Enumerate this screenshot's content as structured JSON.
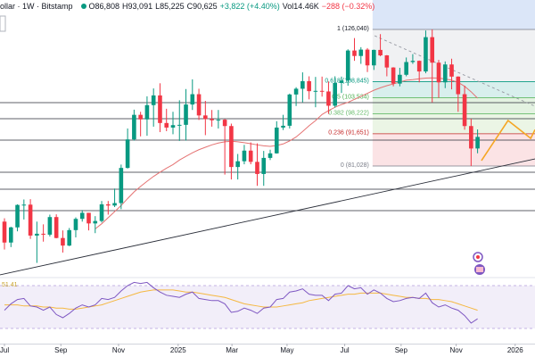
{
  "chart_data": {
    "type": "candlestick",
    "header": {
      "symbol": "ollar · 1W · Bitstamp",
      "open": "O86,808",
      "high": "H93,091",
      "low": "L85,225",
      "close": "C90,625",
      "change": "+3,822 (+4.40%)",
      "volume": "Vol14.46K",
      "volume_change": "−288 (−0.32%)"
    },
    "x": [
      0,
      1,
      2,
      3,
      4,
      5,
      6,
      7,
      8,
      9,
      10,
      11,
      12,
      13,
      14,
      15,
      16,
      17,
      18,
      19,
      20,
      21,
      22,
      23,
      24,
      25,
      26,
      27,
      28,
      29,
      30,
      31,
      32,
      33,
      34,
      35,
      36,
      37,
      38,
      39,
      40,
      41,
      42,
      43,
      44,
      45,
      46,
      47,
      48,
      49,
      50,
      51,
      52,
      53,
      54,
      55,
      56,
      57,
      58,
      59,
      60,
      61,
      62,
      63,
      64,
      65,
      66,
      67,
      68,
      69,
      70,
      71,
      72,
      73
    ],
    "open": [
      62700,
      55800,
      60800,
      68200,
      68300,
      58100,
      58700,
      58400,
      64200,
      57300,
      54800,
      59900,
      63600,
      65600,
      62100,
      62900,
      68400,
      68000,
      68800,
      80400,
      89800,
      97900,
      96400,
      101100,
      104300,
      95200,
      93700,
      94500,
      94600,
      101300,
      104700,
      97700,
      96500,
      96100,
      96300,
      94200,
      80700,
      82600,
      86100,
      82400,
      78400,
      83700,
      85200,
      93700,
      94300,
      104600,
      106500,
      109000,
      105700,
      105800,
      105600,
      100900,
      108400,
      109200,
      119100,
      117300,
      119400,
      114200,
      119300,
      117500,
      113500,
      108200,
      111100,
      115300,
      115700,
      112200,
      123500,
      115100,
      108600,
      114500,
      110500,
      104700,
      94200,
      86808
    ],
    "high": [
      63800,
      61000,
      68400,
      70000,
      70100,
      62700,
      61800,
      65000,
      65100,
      59800,
      60600,
      64100,
      66500,
      65600,
      64500,
      69500,
      69500,
      73600,
      81500,
      93400,
      99600,
      98900,
      104000,
      106600,
      108300,
      99900,
      98900,
      102700,
      106400,
      109600,
      106500,
      102500,
      99500,
      99500,
      96500,
      95000,
      85000,
      88000,
      88800,
      88500,
      86000,
      86400,
      95800,
      97900,
      104900,
      107000,
      111900,
      110600,
      110400,
      110500,
      108900,
      110600,
      110500,
      119500,
      123200,
      120200,
      119900,
      119400,
      124500,
      117600,
      113600,
      113400,
      116800,
      117900,
      115800,
      125700,
      126040,
      116000,
      115500,
      116400,
      110600,
      107500,
      96600,
      93091
    ],
    "low": [
      53500,
      54300,
      59500,
      63400,
      57000,
      49100,
      56100,
      57800,
      57200,
      52500,
      54600,
      57500,
      62700,
      59800,
      58900,
      62400,
      65000,
      67500,
      66800,
      80200,
      89400,
      90800,
      91000,
      94000,
      92200,
      92500,
      91500,
      89300,
      89400,
      99500,
      96200,
      91200,
      94000,
      93400,
      78200,
      76600,
      76600,
      81600,
      81600,
      74500,
      74500,
      83000,
      85100,
      92900,
      93400,
      100800,
      102000,
      103000,
      100400,
      103900,
      98200,
      100300,
      105100,
      107500,
      115700,
      114700,
      112000,
      112700,
      117200,
      110600,
      107300,
      107300,
      110600,
      114700,
      108600,
      111600,
      102000,
      103500,
      106700,
      106300,
      98900,
      93000,
      81028,
      85225
    ],
    "close": [
      55800,
      60800,
      68200,
      68300,
      58100,
      58700,
      58400,
      64200,
      57300,
      54800,
      59900,
      63600,
      65600,
      62100,
      62900,
      68400,
      68000,
      68800,
      80400,
      89800,
      97900,
      96400,
      101100,
      104300,
      95200,
      93700,
      94500,
      94600,
      101300,
      104700,
      97700,
      96500,
      96100,
      96300,
      94200,
      80700,
      82600,
      86100,
      82400,
      78400,
      83700,
      85200,
      93700,
      94300,
      104600,
      106500,
      109000,
      105700,
      105800,
      105600,
      100900,
      108400,
      109200,
      119100,
      117300,
      119400,
      114200,
      119300,
      117500,
      113500,
      108200,
      111100,
      115300,
      115700,
      112200,
      123500,
      115100,
      108600,
      114500,
      110500,
      104700,
      94200,
      86800,
      90625
    ],
    "up_color": "#089981",
    "down_color": "#f23645",
    "xlim": [
      -0.69,
      81.86
    ],
    "xticks": [
      {
        "value": 0,
        "label": "Jul"
      },
      {
        "value": 8.7,
        "label": "Sep"
      },
      {
        "value": 17.6,
        "label": "Nov"
      },
      {
        "value": 26.8,
        "label": "2025"
      },
      {
        "value": 35.1,
        "label": "Mar"
      },
      {
        "value": 43.6,
        "label": "May"
      },
      {
        "value": 52.5,
        "label": "Jul"
      },
      {
        "value": 61.2,
        "label": "Sep"
      },
      {
        "value": 69.7,
        "label": "Nov"
      },
      {
        "value": 78.8,
        "label": "2026"
      }
    ],
    "ylim": [
      44550,
      135750
    ],
    "moving_average": {
      "color": "#e57373",
      "values": [
        null,
        null,
        null,
        null,
        null,
        null,
        null,
        null,
        null,
        null,
        null,
        null,
        null,
        null,
        60300,
        62000,
        64000,
        66000,
        68000,
        70300,
        72500,
        74300,
        76000,
        77600,
        79000,
        80300,
        81500,
        83000,
        84200,
        85400,
        86400,
        87200,
        88000,
        88600,
        89000,
        89200,
        89000,
        88700,
        88400,
        88000,
        87700,
        87500,
        87800,
        88300,
        89300,
        90600,
        92400,
        94300,
        96000,
        98000,
        99300,
        100400,
        101300,
        102000,
        103000,
        104000,
        105000,
        106000,
        106800,
        107500,
        108100,
        108700,
        109300,
        109500,
        109800,
        110000,
        110100,
        110000,
        109700,
        109300,
        108600,
        107300,
        105500,
        103400
      ]
    },
    "horizontal_lines": [
      101920,
      96620,
      89560,
      78970,
      73380,
      66310
    ],
    "trendline": {
      "x": [
        -0.69,
        81.86
      ],
      "y": [
        45140,
        83380
      ]
    },
    "dashed_line": {
      "x": [
        57.1,
        81.86
      ],
      "y": [
        123980,
        100740
      ]
    },
    "projection": {
      "color": "#f5a623",
      "x": [
        73.6,
        77.7,
        81.2,
        81.86
      ],
      "y": [
        82800,
        96030,
        90150,
        93000
      ]
    },
    "fibonacci": {
      "x_start": 56.8,
      "levels": [
        {
          "value": 126040,
          "label": "1 (126,040)"
        },
        {
          "value": 108845,
          "label": "0.618 (108,845)"
        },
        {
          "value": 103534,
          "label": "0.5 (103,534)"
        },
        {
          "value": 98222,
          "label": "0.382 (98,222)"
        },
        {
          "value": 91651,
          "label": "0.236 (91,651)"
        },
        {
          "value": 81028,
          "label": "0 (81,028)"
        }
      ]
    },
    "rsi": {
      "color": "#7e57c2",
      "ylim": [
        15.8,
        76.7
      ],
      "band": [
        30,
        70
      ],
      "label": 51.41,
      "values": [
        47,
        53,
        57,
        58,
        51,
        50,
        47,
        50,
        43,
        40,
        44,
        49,
        52,
        50,
        52,
        58,
        57,
        59,
        65,
        70,
        73,
        72,
        73,
        68,
        64,
        61,
        60,
        59,
        62,
        64,
        58,
        57,
        56,
        56,
        53,
        45,
        46,
        49,
        47,
        44,
        49,
        50,
        57,
        58,
        64,
        65,
        67,
        62,
        61,
        61,
        56,
        62,
        63,
        70,
        67,
        68,
        62,
        66,
        63,
        58,
        55,
        56,
        58,
        59,
        58,
        63,
        54,
        50,
        52,
        49,
        47,
        42,
        35,
        39
      ],
      "ma_color": "#f5b841",
      "ma_values": [
        52,
        52,
        52,
        51,
        51,
        51,
        50,
        50,
        49,
        49,
        48,
        48,
        49,
        50,
        51,
        52,
        54,
        56,
        58,
        60,
        62,
        64,
        65,
        66,
        66,
        66,
        66,
        65,
        64,
        64,
        63,
        62,
        61,
        60,
        59,
        57,
        55,
        53,
        52,
        51,
        50,
        50,
        50,
        51,
        52,
        53,
        54,
        56,
        57,
        58,
        59,
        60,
        61,
        62,
        62,
        63,
        63,
        63,
        63,
        62,
        61,
        60,
        59,
        59,
        58,
        58,
        57,
        57,
        56,
        55,
        53,
        51,
        49,
        47
      ]
    }
  }
}
